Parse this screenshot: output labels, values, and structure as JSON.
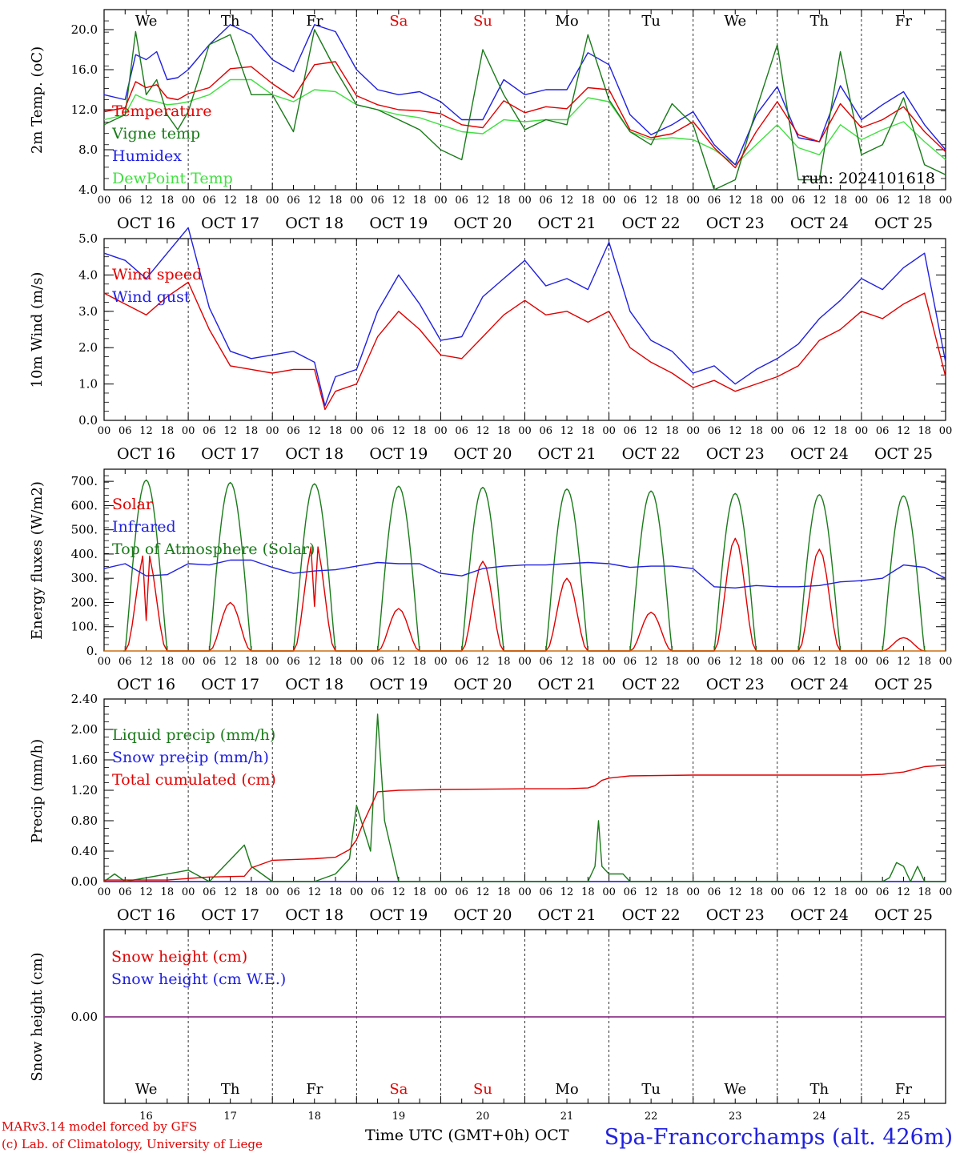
{
  "footer": {
    "model": "MARv3.14 model forced by GFS",
    "lab": "(c) Lab. of Climatology, University of Liege",
    "xlabel": "Time UTC (GMT+0h) OCT",
    "station": "Spa-Francorchamps (alt. 426m)"
  },
  "days": {
    "dow": [
      "We",
      "Th",
      "Fr",
      "Sa",
      "Su",
      "Mo",
      "Tu",
      "We",
      "Th",
      "Fr"
    ],
    "dow_colors": [
      "#000000",
      "#000000",
      "#000000",
      "#e00000",
      "#e00000",
      "#000000",
      "#000000",
      "#000000",
      "#000000",
      "#000000"
    ],
    "dates": [
      "OCT 16",
      "OCT 17",
      "OCT 18",
      "OCT 19",
      "OCT 20",
      "OCT 21",
      "OCT 22",
      "OCT 23",
      "OCT 24",
      "OCT 25"
    ],
    "day_numbers": [
      "16",
      "17",
      "18",
      "19",
      "20",
      "21",
      "22",
      "23",
      "24",
      "25"
    ],
    "hour_ticks": [
      "00",
      "06",
      "12",
      "18"
    ],
    "final_hour": "00"
  },
  "chart_data": [
    {
      "type": "line",
      "ylabel": "2m Temp. (oC)",
      "ylim": [
        4.0,
        22.0
      ],
      "yticks": [
        "4.0",
        "8.0",
        "12.0",
        "16.0",
        "20.0"
      ],
      "run_label": "run: 2024101618",
      "x_unit": "hours since OCT 16 00 UTC",
      "series": [
        {
          "name": "Temperature",
          "color": "#e00000",
          "x": [
            0,
            6,
            9,
            12,
            15,
            18,
            21,
            24,
            30,
            36,
            42,
            48,
            54,
            60,
            66,
            72,
            78,
            84,
            90,
            96,
            102,
            108,
            114,
            120,
            126,
            132,
            138,
            144,
            150,
            156,
            162,
            168,
            174,
            180,
            186,
            192,
            198,
            204,
            210,
            216,
            222,
            228,
            234,
            240
          ],
          "y": [
            11.8,
            12.2,
            14.8,
            14.2,
            14.5,
            13.2,
            13.0,
            13.6,
            14.2,
            16.1,
            16.3,
            14.6,
            13.2,
            16.5,
            16.8,
            13.4,
            12.5,
            12.0,
            11.9,
            11.6,
            10.5,
            10.2,
            12.9,
            11.7,
            12.3,
            12.1,
            14.2,
            14.0,
            10.0,
            9.2,
            9.6,
            10.8,
            8.2,
            6.2,
            9.8,
            12.8,
            9.5,
            8.8,
            12.6,
            10.2,
            11.0,
            12.3,
            9.8,
            7.8
          ]
        },
        {
          "name": "Vigne temp",
          "color": "#1a7a1a",
          "x": [
            0,
            6,
            9,
            12,
            15,
            18,
            21,
            24,
            30,
            36,
            42,
            48,
            54,
            60,
            66,
            72,
            78,
            84,
            90,
            96,
            102,
            108,
            114,
            120,
            126,
            132,
            138,
            144,
            150,
            156,
            162,
            168,
            174,
            180,
            186,
            192,
            198,
            204,
            210,
            216,
            222,
            228,
            234,
            240
          ],
          "y": [
            10.5,
            11.5,
            19.8,
            13.5,
            15.0,
            11.5,
            10.0,
            11.8,
            18.5,
            19.5,
            13.5,
            13.5,
            9.8,
            20.0,
            16.0,
            12.5,
            12.0,
            11.0,
            10.0,
            8.0,
            7.0,
            18.0,
            13.5,
            10.0,
            11.0,
            10.5,
            19.5,
            13.0,
            9.8,
            8.5,
            12.6,
            10.5,
            4.0,
            5.0,
            12.0,
            18.5,
            5.0,
            5.0,
            17.8,
            7.5,
            8.5,
            13.2,
            6.5,
            5.5
          ]
        },
        {
          "name": "Humidex",
          "color": "#2020e0",
          "x": [
            0,
            6,
            9,
            12,
            15,
            18,
            21,
            24,
            30,
            36,
            42,
            48,
            54,
            60,
            66,
            72,
            78,
            84,
            90,
            96,
            102,
            108,
            114,
            120,
            126,
            132,
            138,
            144,
            150,
            156,
            162,
            168,
            174,
            180,
            186,
            192,
            198,
            204,
            210,
            216,
            222,
            228,
            234,
            240
          ],
          "y": [
            13.5,
            13.0,
            17.5,
            17.0,
            17.8,
            15.0,
            15.2,
            16.0,
            18.5,
            20.5,
            19.5,
            17.0,
            15.8,
            20.5,
            19.8,
            16.0,
            14.0,
            13.5,
            13.8,
            12.8,
            11.0,
            11.0,
            15.0,
            13.5,
            14.0,
            14.0,
            17.7,
            16.5,
            11.5,
            9.5,
            10.5,
            11.8,
            8.5,
            6.5,
            11.5,
            14.3,
            9.2,
            8.8,
            14.4,
            11.0,
            12.5,
            13.8,
            10.5,
            8.0
          ]
        },
        {
          "name": "DewPoint Temp",
          "color": "#40e040",
          "x": [
            0,
            6,
            9,
            12,
            15,
            18,
            21,
            24,
            30,
            36,
            42,
            48,
            54,
            60,
            66,
            72,
            78,
            84,
            90,
            96,
            102,
            108,
            114,
            120,
            126,
            132,
            138,
            144,
            150,
            156,
            162,
            168,
            174,
            180,
            186,
            192,
            198,
            204,
            210,
            216,
            222,
            228,
            234,
            240
          ],
          "y": [
            11.0,
            11.5,
            13.5,
            13.0,
            12.8,
            12.5,
            12.6,
            12.8,
            13.5,
            15.0,
            15.0,
            13.5,
            12.8,
            14.0,
            13.8,
            12.5,
            12.0,
            11.5,
            11.2,
            10.5,
            9.8,
            9.6,
            11.0,
            10.8,
            11.0,
            11.0,
            13.2,
            12.8,
            9.8,
            9.0,
            9.2,
            9.0,
            8.0,
            6.5,
            8.5,
            10.5,
            8.2,
            7.5,
            10.5,
            9.0,
            10.0,
            10.8,
            8.8,
            7.0
          ]
        }
      ]
    },
    {
      "type": "line",
      "ylabel": "10m Wind (m/s)",
      "ylim": [
        0.0,
        5.0
      ],
      "yticks": [
        "0.0",
        "1.0",
        "2.0",
        "3.0",
        "4.0",
        "5.0"
      ],
      "x_unit": "hours since OCT 16 00 UTC",
      "series": [
        {
          "name": "Wind speed",
          "color": "#e00000",
          "x": [
            0,
            6,
            12,
            18,
            24,
            30,
            36,
            42,
            48,
            54,
            60,
            63,
            66,
            72,
            78,
            84,
            90,
            96,
            102,
            108,
            114,
            120,
            126,
            132,
            138,
            144,
            150,
            156,
            162,
            168,
            174,
            180,
            186,
            192,
            198,
            204,
            210,
            216,
            222,
            228,
            234,
            240
          ],
          "y": [
            3.5,
            3.2,
            2.9,
            3.4,
            3.8,
            2.5,
            1.5,
            1.4,
            1.3,
            1.4,
            1.4,
            0.3,
            0.8,
            1.0,
            2.3,
            3.0,
            2.5,
            1.8,
            1.7,
            2.3,
            2.9,
            3.3,
            2.9,
            3.0,
            2.7,
            3.0,
            2.0,
            1.6,
            1.3,
            0.9,
            1.1,
            0.8,
            1.0,
            1.2,
            1.5,
            2.2,
            2.5,
            3.0,
            2.8,
            3.2,
            3.5,
            1.2
          ]
        },
        {
          "name": "Wind gust",
          "color": "#2020e0",
          "x": [
            0,
            6,
            12,
            18,
            24,
            30,
            36,
            42,
            48,
            54,
            60,
            63,
            66,
            72,
            78,
            84,
            90,
            96,
            102,
            108,
            114,
            120,
            126,
            132,
            138,
            144,
            150,
            156,
            162,
            168,
            174,
            180,
            186,
            192,
            198,
            204,
            210,
            216,
            222,
            228,
            234,
            240
          ],
          "y": [
            4.6,
            4.4,
            3.9,
            4.6,
            5.3,
            3.1,
            1.9,
            1.7,
            1.8,
            1.9,
            1.6,
            0.4,
            1.2,
            1.4,
            3.0,
            4.0,
            3.2,
            2.2,
            2.3,
            3.4,
            3.9,
            4.4,
            3.7,
            3.9,
            3.6,
            4.9,
            3.0,
            2.2,
            1.9,
            1.3,
            1.5,
            1.0,
            1.4,
            1.7,
            2.1,
            2.8,
            3.3,
            3.9,
            3.6,
            4.2,
            4.6,
            1.6
          ]
        }
      ]
    },
    {
      "type": "line",
      "ylabel": "Energy fluxes (W/m2)",
      "ylim": [
        0,
        750
      ],
      "yticks": [
        "0.",
        "100.",
        "200.",
        "300.",
        "400.",
        "500.",
        "600.",
        "700."
      ],
      "x_unit": "hours since OCT 16 00 UTC",
      "series": [
        {
          "name": "Solar",
          "color": "#e00000",
          "day_peaks": [
            420,
            200,
            460,
            175,
            370,
            300,
            160,
            465,
            420,
            55
          ]
        },
        {
          "name": "Infrared",
          "color": "#2020e0",
          "x": [
            0,
            6,
            12,
            18,
            24,
            30,
            36,
            42,
            48,
            54,
            60,
            66,
            72,
            78,
            84,
            90,
            96,
            102,
            108,
            114,
            120,
            126,
            132,
            138,
            144,
            150,
            156,
            162,
            168,
            174,
            180,
            186,
            192,
            198,
            204,
            210,
            216,
            222,
            228,
            234,
            240
          ],
          "y": [
            340,
            360,
            310,
            315,
            360,
            355,
            375,
            375,
            345,
            320,
            330,
            335,
            350,
            365,
            360,
            360,
            320,
            310,
            340,
            350,
            355,
            355,
            360,
            365,
            360,
            345,
            350,
            350,
            340,
            265,
            260,
            270,
            265,
            265,
            270,
            285,
            290,
            300,
            355,
            345,
            300
          ]
        },
        {
          "name": "Top of Atmosphere (Solar)",
          "color": "#1a7a1a",
          "day_peaks": [
            705,
            695,
            690,
            680,
            675,
            668,
            660,
            650,
            645,
            640
          ]
        }
      ]
    },
    {
      "type": "line",
      "ylabel": "Precip (mm/h)",
      "ylim": [
        0.0,
        2.4
      ],
      "yticks": [
        "0.00",
        "0.40",
        "0.80",
        "1.20",
        "1.60",
        "2.00",
        "2.40"
      ],
      "x_unit": "hours since OCT 16 00 UTC",
      "series": [
        {
          "name": "Liquid precip (mm/h)",
          "color": "#1a7a1a",
          "x": [
            0,
            3,
            6,
            24,
            30,
            40,
            42,
            48,
            60,
            66,
            70,
            72,
            76,
            78,
            80,
            84,
            96,
            120,
            132,
            138,
            140,
            141,
            142,
            144,
            148,
            150,
            156,
            168,
            192,
            216,
            222,
            224,
            226,
            228,
            230,
            232,
            234,
            236,
            240
          ],
          "y": [
            0.0,
            0.1,
            0.0,
            0.15,
            0.0,
            0.48,
            0.2,
            0.0,
            0.0,
            0.1,
            0.3,
            1.0,
            0.4,
            2.2,
            0.8,
            0.0,
            0.0,
            0.0,
            0.0,
            0.0,
            0.2,
            0.8,
            0.2,
            0.1,
            0.1,
            0.0,
            0.0,
            0.0,
            0.0,
            0.0,
            0.0,
            0.05,
            0.25,
            0.2,
            0.0,
            0.2,
            0.0,
            0.0,
            0.0
          ]
        },
        {
          "name": "Snow precip (mm/h)",
          "color": "#2020e0",
          "x": [
            0,
            240
          ],
          "y": [
            0.0,
            0.0
          ]
        },
        {
          "name": "Total cumulated (cm)",
          "color": "#e00000",
          "x": [
            0,
            18,
            24,
            30,
            40,
            42,
            48,
            60,
            66,
            70,
            72,
            74,
            78,
            84,
            96,
            120,
            132,
            138,
            140,
            142,
            144,
            150,
            168,
            192,
            216,
            222,
            228,
            234,
            240
          ],
          "y": [
            0.02,
            0.02,
            0.04,
            0.06,
            0.07,
            0.18,
            0.28,
            0.3,
            0.32,
            0.42,
            0.55,
            0.78,
            1.18,
            1.2,
            1.21,
            1.22,
            1.22,
            1.23,
            1.26,
            1.33,
            1.36,
            1.39,
            1.4,
            1.4,
            1.4,
            1.41,
            1.44,
            1.51,
            1.53
          ]
        }
      ]
    },
    {
      "type": "line",
      "ylabel": "Snow height (cm)",
      "yticks": [
        "0.00"
      ],
      "series": [
        {
          "name": "Snow height (cm)",
          "color": "#e00000",
          "x": [
            0,
            240
          ],
          "y": [
            0,
            0
          ]
        },
        {
          "name": "Snow height (cm W.E.)",
          "color": "#2020e0",
          "x": [
            0,
            240
          ],
          "y": [
            0,
            0
          ]
        }
      ]
    }
  ]
}
